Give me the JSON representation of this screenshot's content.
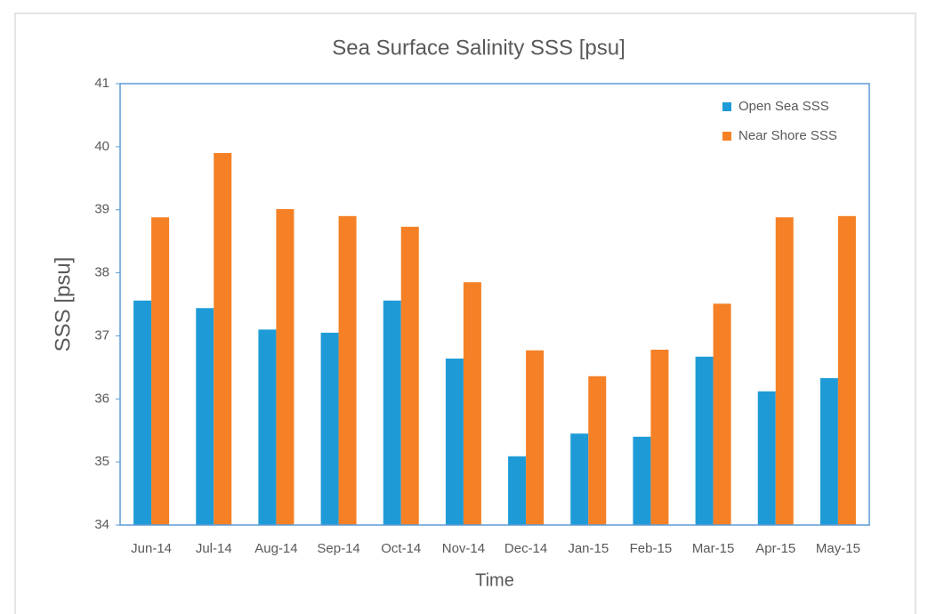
{
  "chart_data": {
    "type": "bar",
    "title": "Sea Surface Salinity SSS  [psu]",
    "x_label": "Time",
    "y_label": "SSS  [psu]",
    "categories": [
      "Jun-14",
      "Jul-14",
      "Aug-14",
      "Sep-14",
      "Oct-14",
      "Nov-14",
      "Dec-14",
      "Jan-15",
      "Feb-15",
      "Mar-15",
      "Apr-15",
      "May-15"
    ],
    "series": [
      {
        "name": "Open Sea SSS",
        "color": "#1e9bd7",
        "values": [
          37.56,
          37.44,
          37.1,
          37.05,
          37.56,
          36.64,
          35.09,
          35.45,
          35.4,
          36.67,
          36.12,
          36.33
        ]
      },
      {
        "name": "Near Shore SSS",
        "color": "#f58025",
        "values": [
          38.88,
          39.9,
          39.01,
          38.9,
          38.73,
          37.85,
          36.77,
          36.36,
          36.78,
          37.51,
          38.88,
          38.9
        ]
      }
    ],
    "ylim": [
      34,
      41
    ],
    "yticks": [
      34,
      35,
      36,
      37,
      38,
      39,
      40,
      41
    ],
    "legend": "upper right"
  }
}
